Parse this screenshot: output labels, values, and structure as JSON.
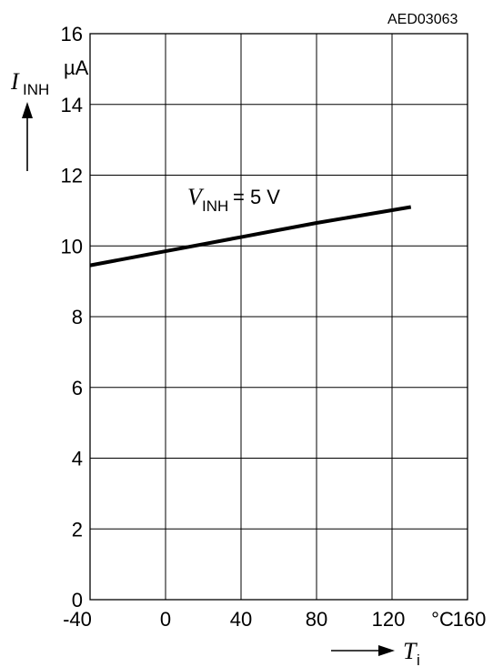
{
  "chart_data": {
    "type": "line",
    "figure_id": "AED03063",
    "x": [
      -40,
      0,
      40,
      80,
      130
    ],
    "series": [
      {
        "label_var": "V",
        "label_sub": "INH",
        "label_rest": " = 5 V",
        "values": [
          9.45,
          9.85,
          10.25,
          10.65,
          11.1
        ]
      }
    ],
    "xlim": [
      -40,
      160
    ],
    "ylim": [
      0,
      16
    ],
    "x_ticks": [
      "-40",
      "0",
      "40",
      "80",
      "120",
      "160"
    ],
    "x_unit": "°C",
    "y_ticks": [
      "0",
      "2",
      "4",
      "6",
      "8",
      "10",
      "12",
      "14",
      "16"
    ],
    "y_unit": "µA",
    "xlabel_var": "T",
    "xlabel_sub": "i",
    "ylabel_var": "I",
    "ylabel_sub": "INH",
    "grid": true,
    "line_color": "#000000"
  }
}
